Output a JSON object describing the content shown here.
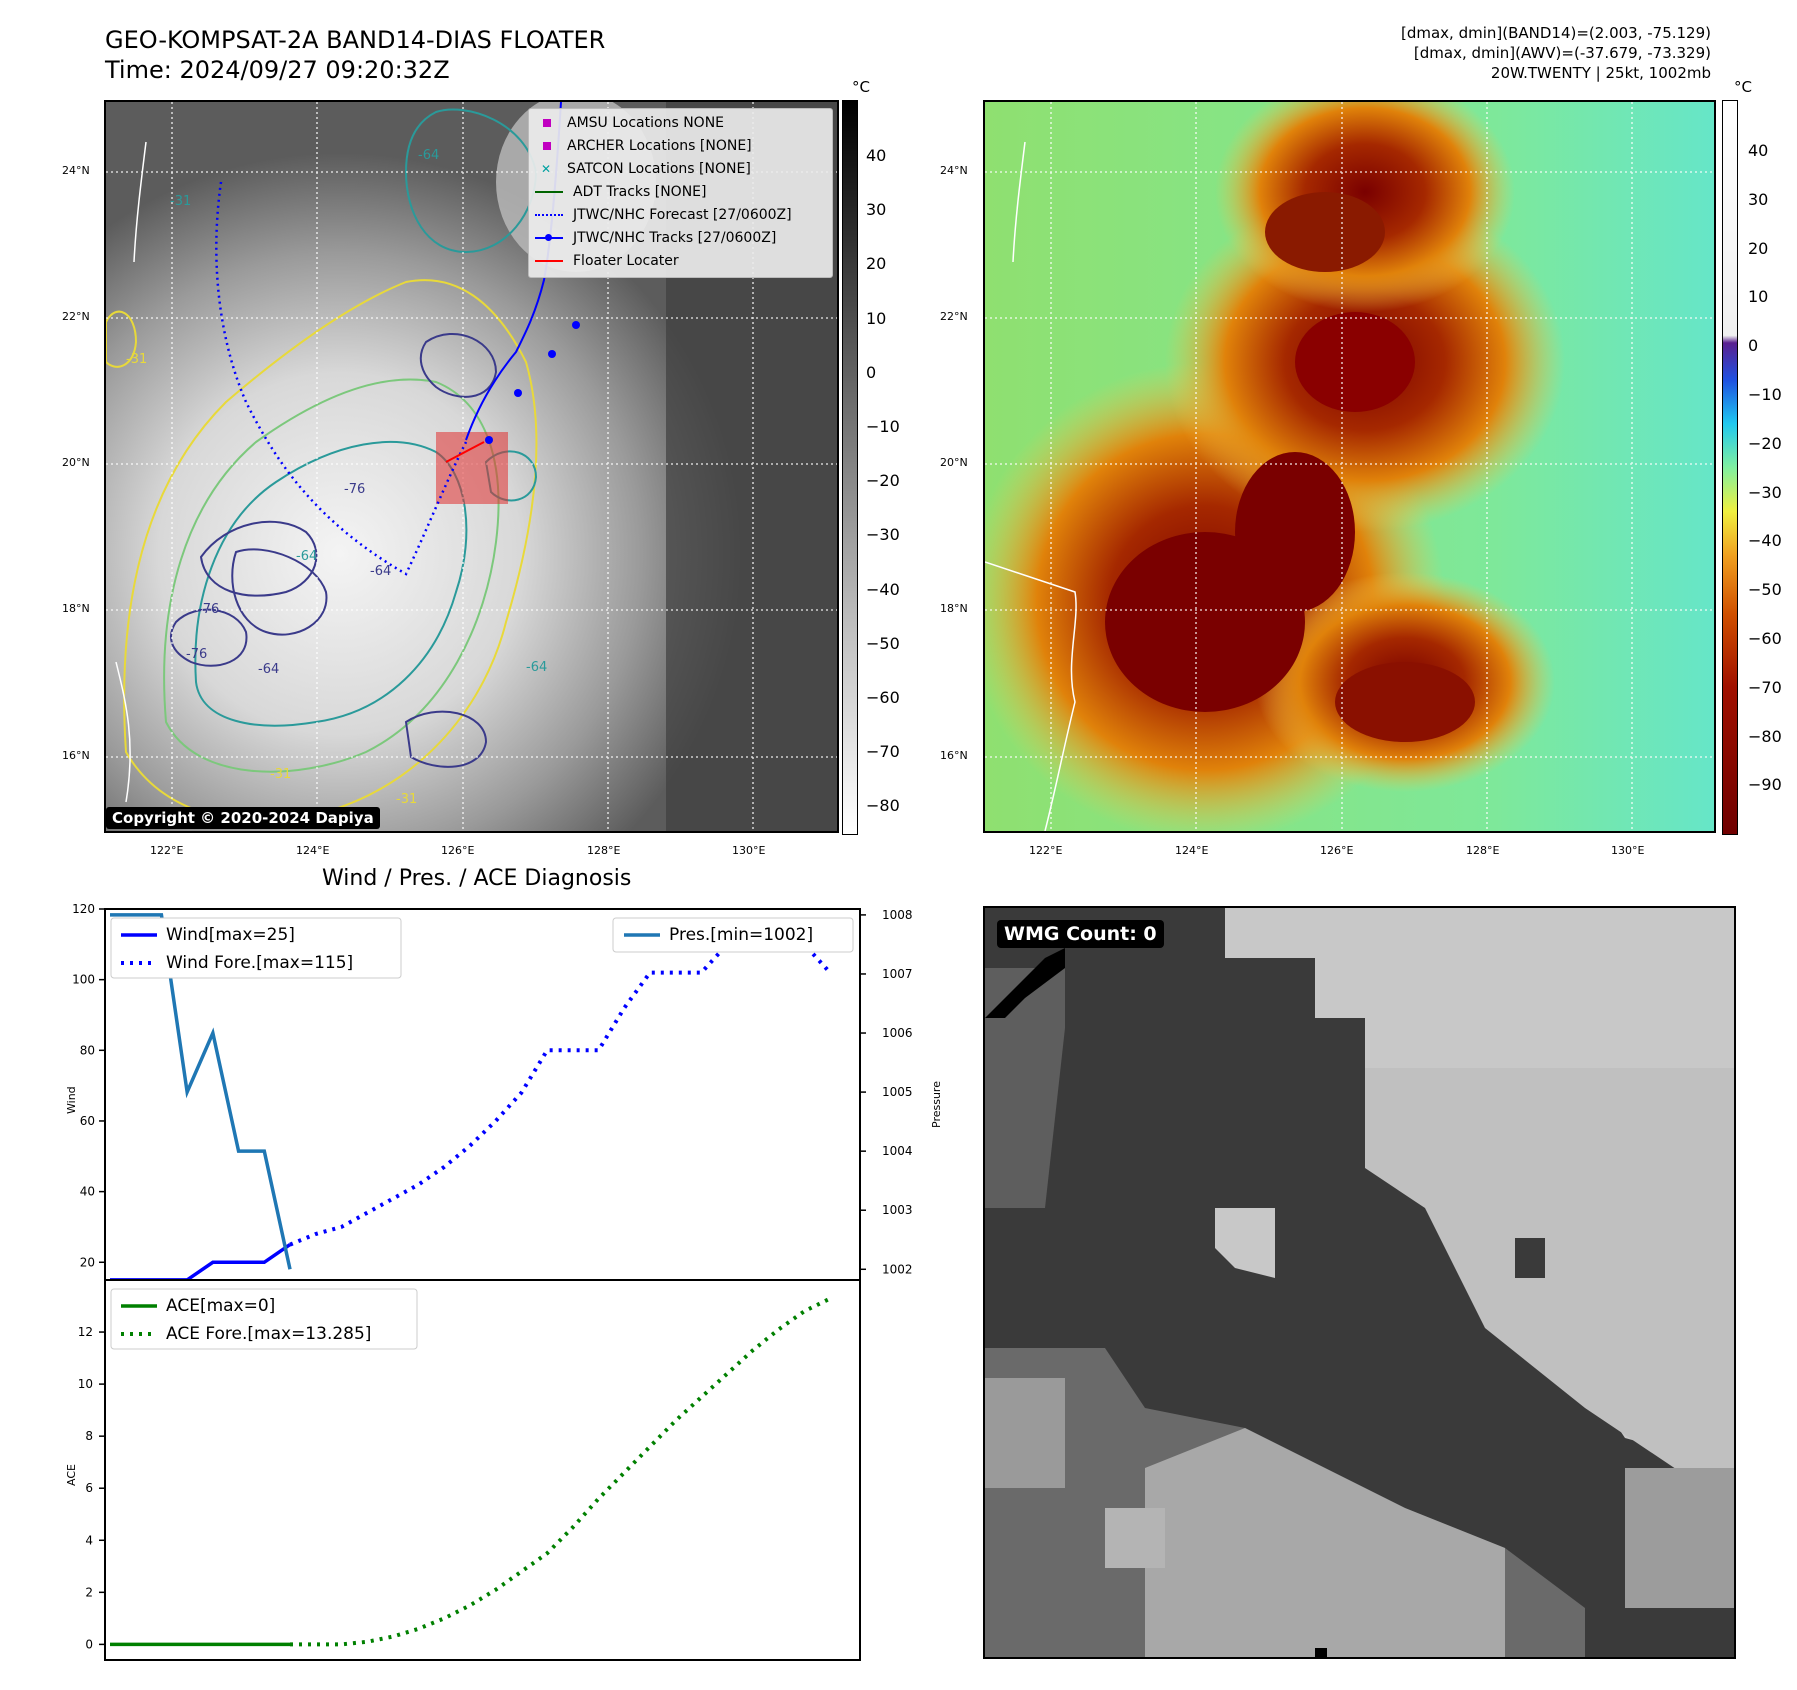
{
  "top_left": {
    "title_line1": "GEO-KOMPSAT-2A BAND14-DIAS FLOATER",
    "title_line2": "Time: 2024/09/27 09:20:32Z",
    "copyright": "Copyright © 2020-2024 Dapiya",
    "colorbar_unit": "°C",
    "colorbar_ticks": [
      "40",
      "30",
      "20",
      "10",
      "0",
      "−10",
      "−20",
      "−30",
      "−40",
      "−50",
      "−60",
      "−70",
      "−80"
    ],
    "lat_labels": [
      "24°N",
      "22°N",
      "20°N",
      "18°N",
      "16°N"
    ],
    "lon_labels": [
      "122°E",
      "124°E",
      "126°E",
      "128°E",
      "130°E"
    ],
    "contour_labels": [
      "-31",
      "-64",
      "-76",
      "-64",
      "-76",
      "-64",
      "-31",
      "-31",
      "-31",
      "-64",
      "-76",
      "-64"
    ],
    "legend": [
      {
        "label": "AMSU Locations NONE",
        "color": "#c000c0",
        "marker": "square"
      },
      {
        "label": "ARCHER Locations [NONE]",
        "color": "#c000c0",
        "marker": "square"
      },
      {
        "label": "SATCON Locations [NONE]",
        "color": "#00a0a0",
        "marker": "x"
      },
      {
        "label": "ADT Tracks [NONE]",
        "color": "#006400",
        "marker": "line"
      },
      {
        "label": "JTWC/NHC Forecast [27/0600Z]",
        "color": "#0000ff",
        "marker": "dotted"
      },
      {
        "label": "JTWC/NHC Tracks [27/0600Z]",
        "color": "#0000ff",
        "marker": "line-dot"
      },
      {
        "label": "Floater Locater",
        "color": "#ff0000",
        "marker": "line"
      }
    ]
  },
  "top_right": {
    "header_line1": "[dmax, dmin](BAND14)=(2.003, -75.129)",
    "header_line2": "[dmax, dmin](AWV)=(-37.679, -73.329)",
    "header_line3": "20W.TWENTY | 25kt, 1002mb",
    "colorbar_unit": "°C",
    "colorbar_ticks": [
      "40",
      "30",
      "20",
      "10",
      "0",
      "−10",
      "−20",
      "−30",
      "−40",
      "−50",
      "−60",
      "−70",
      "−80",
      "−90"
    ],
    "lat_labels": [
      "24°N",
      "22°N",
      "20°N",
      "18°N",
      "16°N"
    ],
    "lon_labels": [
      "122°E",
      "124°E",
      "126°E",
      "128°E",
      "130°E"
    ]
  },
  "chart_data": [
    {
      "type": "line",
      "title": "Wind / Pres. / ACE Diagnosis",
      "ylabel": "Wind",
      "y2label": "Pressure",
      "ylim": [
        13,
        120
      ],
      "y2lim": [
        1001.7,
        1008.1
      ],
      "yticks": [
        20,
        40,
        60,
        80,
        100,
        120
      ],
      "y2ticks": [
        1002,
        1003,
        1004,
        1005,
        1006,
        1007,
        1008
      ],
      "x": [
        0,
        1,
        2,
        3,
        4,
        5,
        6,
        7,
        8,
        9,
        10,
        11,
        12,
        13,
        14,
        15,
        16,
        17,
        18,
        19,
        20,
        21,
        22,
        23,
        24,
        25,
        26,
        27,
        28
      ],
      "series": [
        {
          "name": "Wind[max=25]",
          "style": "solid",
          "color": "#0000ff",
          "axis": "left",
          "values": [
            15,
            15,
            15,
            15,
            20,
            20,
            20,
            25,
            null,
            null,
            null,
            null,
            null,
            null,
            null,
            null,
            null,
            null,
            null,
            null,
            null,
            null,
            null,
            null,
            null,
            null,
            null,
            null,
            null
          ]
        },
        {
          "name": "Wind Fore.[max=115]",
          "style": "dotted",
          "color": "#0000ff",
          "axis": "left",
          "values": [
            null,
            null,
            null,
            null,
            null,
            null,
            null,
            25,
            28,
            30,
            34,
            38,
            42,
            47,
            53,
            60,
            68,
            80,
            80,
            80,
            92,
            102,
            102,
            102,
            110,
            115,
            115,
            110,
            102
          ]
        },
        {
          "name": "Pres.[min=1002]",
          "style": "solid",
          "color": "#1f77b4",
          "axis": "right",
          "values": [
            1008,
            1008,
            1008,
            1005,
            1006,
            1004,
            1004,
            1002,
            null,
            null,
            null,
            null,
            null,
            null,
            null,
            null,
            null,
            null,
            null,
            null,
            null,
            null,
            null,
            null,
            null,
            null,
            null,
            null,
            null
          ]
        }
      ]
    },
    {
      "type": "line",
      "ylabel": "ACE",
      "ylim": [
        -0.6,
        14
      ],
      "yticks": [
        0,
        2,
        4,
        6,
        8,
        10,
        12
      ],
      "x": [
        0,
        1,
        2,
        3,
        4,
        5,
        6,
        7,
        8,
        9,
        10,
        11,
        12,
        13,
        14,
        15,
        16,
        17,
        18,
        19,
        20,
        21,
        22,
        23,
        24,
        25,
        26,
        27,
        28
      ],
      "series": [
        {
          "name": "ACE[max=0]",
          "style": "solid",
          "color": "#008000",
          "values": [
            0,
            0,
            0,
            0,
            0,
            0,
            0,
            0,
            null,
            null,
            null,
            null,
            null,
            null,
            null,
            null,
            null,
            null,
            null,
            null,
            null,
            null,
            null,
            null,
            null,
            null,
            null,
            null,
            null
          ]
        },
        {
          "name": "ACE Fore.[max=13.285]",
          "style": "dotted",
          "color": "#008000",
          "values": [
            null,
            null,
            null,
            null,
            null,
            null,
            null,
            0,
            0,
            0,
            0.1,
            0.3,
            0.6,
            1.0,
            1.5,
            2.1,
            2.8,
            3.5,
            4.5,
            5.6,
            6.6,
            7.6,
            8.6,
            9.5,
            10.4,
            11.3,
            12.1,
            12.8,
            13.285
          ]
        }
      ]
    }
  ],
  "bottom_right": {
    "wmg_label": "WMG Count: 0"
  },
  "colors": {
    "wind": "#0000ff",
    "pressure": "#1f77b4",
    "ace": "#008000"
  }
}
